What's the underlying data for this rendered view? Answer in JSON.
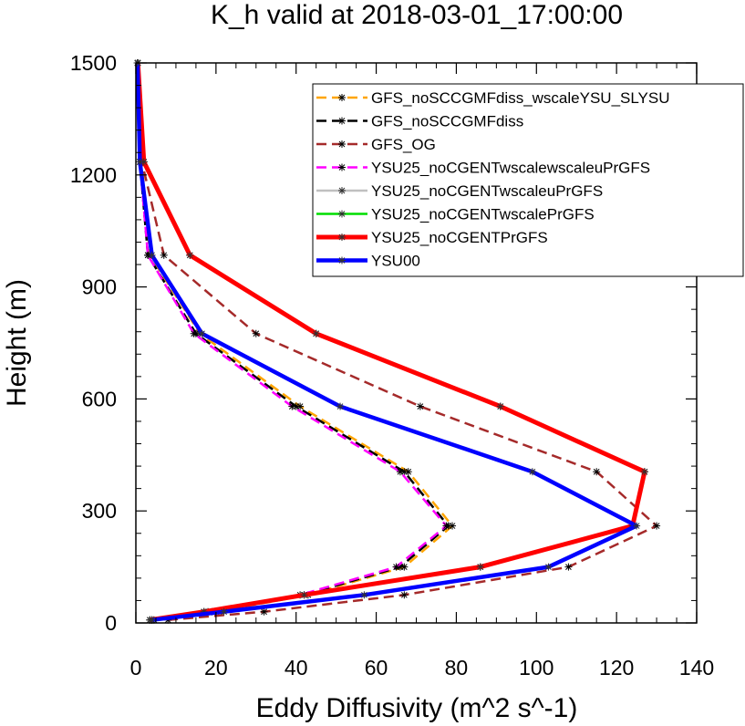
{
  "chart_data": {
    "type": "line",
    "title": "K_h valid at 2018-03-01_17:00:00",
    "xlabel": "Eddy Diffusivity (m^2 s^-1)",
    "ylabel": "Height (m)",
    "xlim": [
      0,
      140
    ],
    "ylim": [
      0,
      1500
    ],
    "xticks": [
      0,
      20,
      40,
      60,
      80,
      100,
      120,
      140
    ],
    "yticks": [
      0,
      300,
      600,
      900,
      1200,
      1500
    ],
    "xticks_labels": [
      "0",
      "20",
      "40",
      "60",
      "80",
      "100",
      "120",
      "140"
    ],
    "yticks_labels": [
      "0",
      "300",
      "600",
      "900",
      "1200",
      "1500"
    ],
    "grid": false,
    "legend_position": "top-right",
    "y": [
      8,
      30,
      75,
      150,
      260,
      405,
      580,
      775,
      985,
      1235,
      1500
    ],
    "series": [
      {
        "name": "GFS_noSCCGMFdiss_wscaleYSU_SLYSU",
        "color": "#FFA500",
        "dash": "dash",
        "x": [
          4.5,
          20,
          43,
          67,
          79,
          68,
          41,
          16,
          3.5,
          1.5,
          0.5
        ]
      },
      {
        "name": "GFS_noSCCGMFdiss",
        "color": "#000000",
        "dash": "dash",
        "x": [
          4,
          19,
          42,
          66,
          78,
          67,
          40,
          15,
          3,
          1,
          0.4
        ]
      },
      {
        "name": "GFS_OG",
        "color": "#A52A2A",
        "dash": "dash",
        "x": [
          8,
          32,
          67,
          108,
          130,
          115,
          71,
          30,
          7,
          1.5,
          0.5
        ]
      },
      {
        "name": "YSU25_noCGENTwscalewscaleuPrGFS",
        "color": "#FF00FF",
        "dash": "dash",
        "x": [
          4,
          18,
          41,
          65,
          77.5,
          66,
          39,
          14.5,
          3,
          1,
          0.4
        ]
      },
      {
        "name": "YSU25_noCGENTwscaleuPrGFS",
        "color": "#C0C0C0",
        "dash": "solid",
        "x": [
          3.5,
          17,
          42,
          86,
          124,
          127,
          91,
          45,
          13.5,
          2,
          0.5
        ]
      },
      {
        "name": "YSU25_noCGENTwscalePrGFS",
        "color": "#00DD00",
        "dash": "solid",
        "x": [
          3.5,
          17,
          42,
          86,
          124,
          127,
          91,
          45,
          13.5,
          2,
          0.5
        ]
      },
      {
        "name": "YSU25_noCGENTPrGFS",
        "color": "#FF0000",
        "dash": "solid",
        "x": [
          3.5,
          17,
          42,
          86,
          124,
          127,
          91,
          45,
          13.5,
          2,
          0.5
        ]
      },
      {
        "name": "YSU00",
        "color": "#0000FF",
        "dash": "solid",
        "x": [
          4,
          22,
          57,
          103,
          125,
          99,
          51,
          16.5,
          4,
          1,
          0.4
        ]
      }
    ]
  }
}
